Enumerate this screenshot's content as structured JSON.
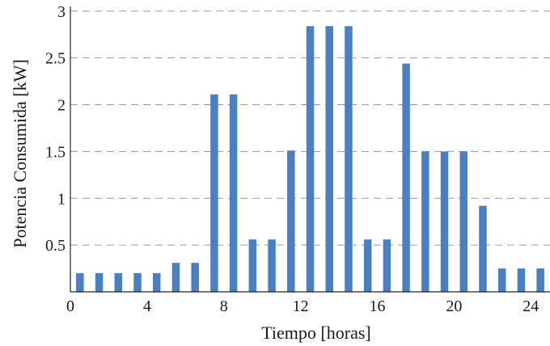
{
  "chart_data": {
    "type": "bar",
    "xlabel": "Tiempo [horas]",
    "ylabel": "Potencia Consumida [kW]",
    "xlim": [
      0,
      25
    ],
    "ylim": [
      0,
      3.05
    ],
    "x_ticks": [
      0,
      4,
      8,
      12,
      16,
      20,
      24
    ],
    "x_tick_labels": [
      "0",
      "4",
      "8",
      "12",
      "16",
      "20",
      "24"
    ],
    "y_ticks": [
      0.5,
      1,
      1.5,
      2,
      2.5,
      3
    ],
    "y_tick_labels": [
      "0.5",
      "1",
      "1.5",
      "2",
      "2.5",
      "3"
    ],
    "grid": "horizontal dashed",
    "bar_color": "#4a7fc1",
    "x": [
      0.5,
      1.5,
      2.5,
      3.5,
      4.5,
      5.5,
      6.5,
      7.5,
      8.5,
      9.5,
      10.5,
      11.5,
      12.5,
      13.5,
      14.5,
      15.5,
      16.5,
      17.5,
      18.5,
      19.5,
      20.5,
      21.5,
      22.5,
      23.5,
      24.5
    ],
    "values": [
      0.2,
      0.2,
      0.2,
      0.2,
      0.2,
      0.31,
      0.31,
      2.11,
      2.11,
      0.56,
      0.56,
      1.51,
      2.84,
      2.84,
      2.84,
      0.56,
      0.56,
      2.44,
      1.5,
      1.5,
      1.5,
      0.92,
      0.25,
      0.25,
      0.25
    ]
  }
}
